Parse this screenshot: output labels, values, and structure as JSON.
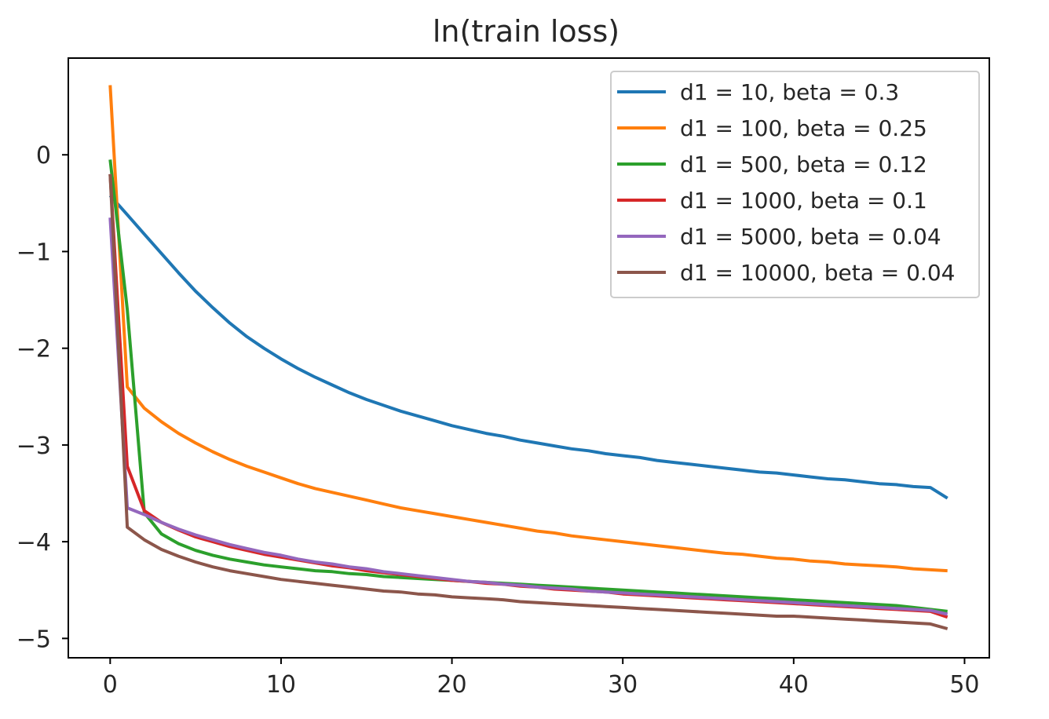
{
  "chart_data": {
    "type": "line",
    "title": "ln(train loss)",
    "xlabel": "",
    "ylabel": "",
    "xlim": [
      -2.45,
      51.45
    ],
    "ylim": [
      -5.2,
      1.0
    ],
    "xticks": [
      0,
      10,
      20,
      30,
      40,
      50
    ],
    "xtick_labels": [
      "0",
      "10",
      "20",
      "30",
      "40",
      "50"
    ],
    "yticks": [
      0,
      -1,
      -2,
      -3,
      -4,
      -5
    ],
    "ytick_labels": [
      "0",
      "−1",
      "−2",
      "−3",
      "−4",
      "−5"
    ],
    "grid": false,
    "legend_position": "top-right",
    "x": [
      0,
      1,
      2,
      3,
      4,
      5,
      6,
      7,
      8,
      9,
      10,
      11,
      12,
      13,
      14,
      15,
      16,
      17,
      18,
      19,
      20,
      21,
      22,
      23,
      24,
      25,
      26,
      27,
      28,
      29,
      30,
      31,
      32,
      33,
      34,
      35,
      36,
      37,
      38,
      39,
      40,
      41,
      42,
      43,
      44,
      45,
      46,
      47,
      48,
      49
    ],
    "series": [
      {
        "name": "d1 = 10, beta = 0.3",
        "color": "#1f77b4",
        "values": [
          -0.42,
          -0.62,
          -0.82,
          -1.02,
          -1.22,
          -1.41,
          -1.58,
          -1.74,
          -1.88,
          -2.0,
          -2.11,
          -2.21,
          -2.3,
          -2.38,
          -2.46,
          -2.53,
          -2.59,
          -2.65,
          -2.7,
          -2.75,
          -2.8,
          -2.84,
          -2.88,
          -2.91,
          -2.95,
          -2.98,
          -3.01,
          -3.04,
          -3.06,
          -3.09,
          -3.11,
          -3.13,
          -3.16,
          -3.18,
          -3.2,
          -3.22,
          -3.24,
          -3.26,
          -3.28,
          -3.29,
          -3.31,
          -3.33,
          -3.35,
          -3.36,
          -3.38,
          -3.4,
          -3.41,
          -3.43,
          -3.44,
          -3.55
        ]
      },
      {
        "name": "d1 = 100, beta = 0.25",
        "color": "#ff7f0e",
        "values": [
          0.72,
          -2.4,
          -2.62,
          -2.76,
          -2.88,
          -2.98,
          -3.07,
          -3.15,
          -3.22,
          -3.28,
          -3.34,
          -3.4,
          -3.45,
          -3.49,
          -3.53,
          -3.57,
          -3.61,
          -3.65,
          -3.68,
          -3.71,
          -3.74,
          -3.77,
          -3.8,
          -3.83,
          -3.86,
          -3.89,
          -3.91,
          -3.94,
          -3.96,
          -3.98,
          -4.0,
          -4.02,
          -4.04,
          -4.06,
          -4.08,
          -4.1,
          -4.12,
          -4.13,
          -4.15,
          -4.17,
          -4.18,
          -4.2,
          -4.21,
          -4.23,
          -4.24,
          -4.25,
          -4.26,
          -4.28,
          -4.29,
          -4.3
        ]
      },
      {
        "name": "d1 = 500, beta = 0.12",
        "color": "#2ca02c",
        "values": [
          -0.05,
          -1.6,
          -3.7,
          -3.92,
          -4.02,
          -4.09,
          -4.14,
          -4.18,
          -4.21,
          -4.24,
          -4.26,
          -4.28,
          -4.3,
          -4.31,
          -4.33,
          -4.34,
          -4.36,
          -4.37,
          -4.38,
          -4.39,
          -4.4,
          -4.41,
          -4.42,
          -4.43,
          -4.44,
          -4.45,
          -4.46,
          -4.47,
          -4.48,
          -4.49,
          -4.5,
          -4.51,
          -4.52,
          -4.53,
          -4.54,
          -4.55,
          -4.56,
          -4.57,
          -4.58,
          -4.59,
          -4.6,
          -4.61,
          -4.62,
          -4.63,
          -4.64,
          -4.65,
          -4.66,
          -4.68,
          -4.7,
          -4.72
        ]
      },
      {
        "name": "d1 = 1000, beta = 0.1",
        "color": "#d62728",
        "values": [
          -0.2,
          -3.22,
          -3.68,
          -3.8,
          -3.88,
          -3.95,
          -4.0,
          -4.05,
          -4.09,
          -4.13,
          -4.16,
          -4.19,
          -4.22,
          -4.25,
          -4.27,
          -4.3,
          -4.32,
          -4.34,
          -4.36,
          -4.38,
          -4.4,
          -4.41,
          -4.43,
          -4.44,
          -4.46,
          -4.47,
          -4.49,
          -4.5,
          -4.51,
          -4.52,
          -4.54,
          -4.55,
          -4.56,
          -4.57,
          -4.58,
          -4.59,
          -4.6,
          -4.61,
          -4.62,
          -4.63,
          -4.64,
          -4.65,
          -4.66,
          -4.67,
          -4.68,
          -4.69,
          -4.7,
          -4.71,
          -4.72,
          -4.78
        ]
      },
      {
        "name": "d1 = 5000, beta = 0.04",
        "color": "#9467bd",
        "values": [
          -0.65,
          -3.65,
          -3.72,
          -3.8,
          -3.87,
          -3.93,
          -3.98,
          -4.03,
          -4.07,
          -4.11,
          -4.14,
          -4.18,
          -4.21,
          -4.23,
          -4.26,
          -4.28,
          -4.31,
          -4.33,
          -4.35,
          -4.37,
          -4.39,
          -4.41,
          -4.42,
          -4.44,
          -4.45,
          -4.47,
          -4.48,
          -4.49,
          -4.51,
          -4.52,
          -4.53,
          -4.54,
          -4.55,
          -4.56,
          -4.57,
          -4.58,
          -4.59,
          -4.6,
          -4.61,
          -4.62,
          -4.63,
          -4.64,
          -4.65,
          -4.66,
          -4.67,
          -4.68,
          -4.69,
          -4.7,
          -4.71,
          -4.75
        ]
      },
      {
        "name": "d1 = 10000, beta = 0.04",
        "color": "#8c564b",
        "values": [
          -0.2,
          -3.85,
          -3.98,
          -4.08,
          -4.15,
          -4.21,
          -4.26,
          -4.3,
          -4.33,
          -4.36,
          -4.39,
          -4.41,
          -4.43,
          -4.45,
          -4.47,
          -4.49,
          -4.51,
          -4.52,
          -4.54,
          -4.55,
          -4.57,
          -4.58,
          -4.59,
          -4.6,
          -4.62,
          -4.63,
          -4.64,
          -4.65,
          -4.66,
          -4.67,
          -4.68,
          -4.69,
          -4.7,
          -4.71,
          -4.72,
          -4.73,
          -4.74,
          -4.75,
          -4.76,
          -4.77,
          -4.77,
          -4.78,
          -4.79,
          -4.8,
          -4.81,
          -4.82,
          -4.83,
          -4.84,
          -4.85,
          -4.9
        ]
      }
    ]
  }
}
